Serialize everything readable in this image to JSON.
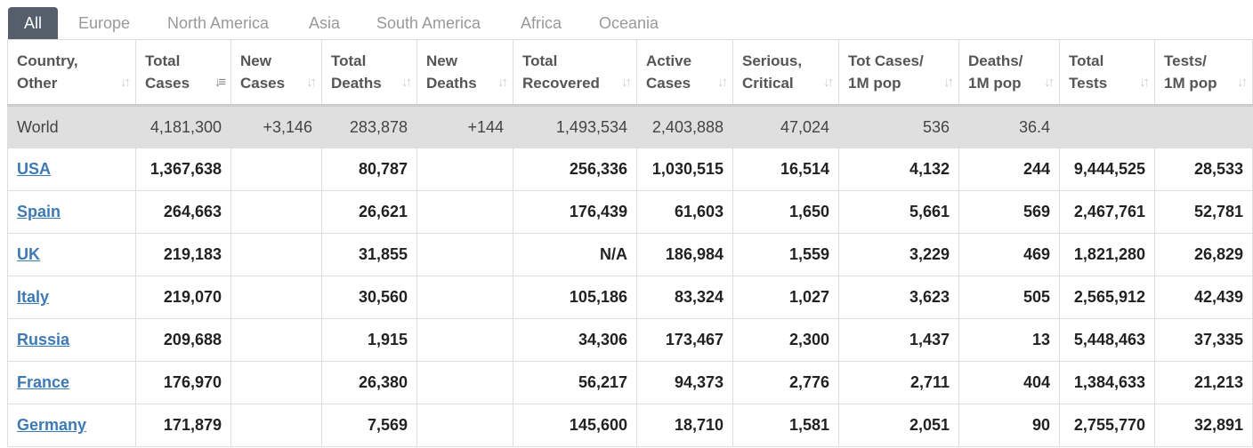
{
  "tabs": [
    "All",
    "Europe",
    "North America",
    "Asia",
    "South America",
    "Africa",
    "Oceania"
  ],
  "columns": [
    [
      "Country,",
      "Other"
    ],
    [
      "Total",
      "Cases"
    ],
    [
      "New",
      "Cases"
    ],
    [
      "Total",
      "Deaths"
    ],
    [
      "New",
      "Deaths"
    ],
    [
      "Total",
      "Recovered"
    ],
    [
      "Active",
      "Cases"
    ],
    [
      "Serious,",
      "Critical"
    ],
    [
      "Tot Cases/",
      "1M pop"
    ],
    [
      "Deaths/",
      "1M pop"
    ],
    [
      "Total",
      "Tests"
    ],
    [
      "Tests/",
      "1M pop"
    ]
  ],
  "sort_icon": "sort-arrows-icon",
  "world": [
    "World",
    "4,181,300",
    "+3,146",
    "283,878",
    "+144",
    "1,493,534",
    "2,403,888",
    "47,024",
    "536",
    "36.4",
    "",
    ""
  ],
  "rows": [
    [
      "USA",
      "1,367,638",
      "",
      "80,787",
      "",
      "256,336",
      "1,030,515",
      "16,514",
      "4,132",
      "244",
      "9,444,525",
      "28,533"
    ],
    [
      "Spain",
      "264,663",
      "",
      "26,621",
      "",
      "176,439",
      "61,603",
      "1,650",
      "5,661",
      "569",
      "2,467,761",
      "52,781"
    ],
    [
      "UK",
      "219,183",
      "",
      "31,855",
      "",
      "N/A",
      "186,984",
      "1,559",
      "3,229",
      "469",
      "1,821,280",
      "26,829"
    ],
    [
      "Italy",
      "219,070",
      "",
      "30,560",
      "",
      "105,186",
      "83,324",
      "1,027",
      "3,623",
      "505",
      "2,565,912",
      "42,439"
    ],
    [
      "Russia",
      "209,688",
      "",
      "1,915",
      "",
      "34,306",
      "173,467",
      "2,300",
      "1,437",
      "13",
      "5,448,463",
      "37,335"
    ],
    [
      "France",
      "176,970",
      "",
      "26,380",
      "",
      "56,217",
      "94,373",
      "2,776",
      "2,711",
      "404",
      "1,384,633",
      "21,213"
    ],
    [
      "Germany",
      "171,879",
      "",
      "7,569",
      "",
      "145,600",
      "18,710",
      "1,581",
      "2,051",
      "90",
      "2,755,770",
      "32,891"
    ]
  ]
}
